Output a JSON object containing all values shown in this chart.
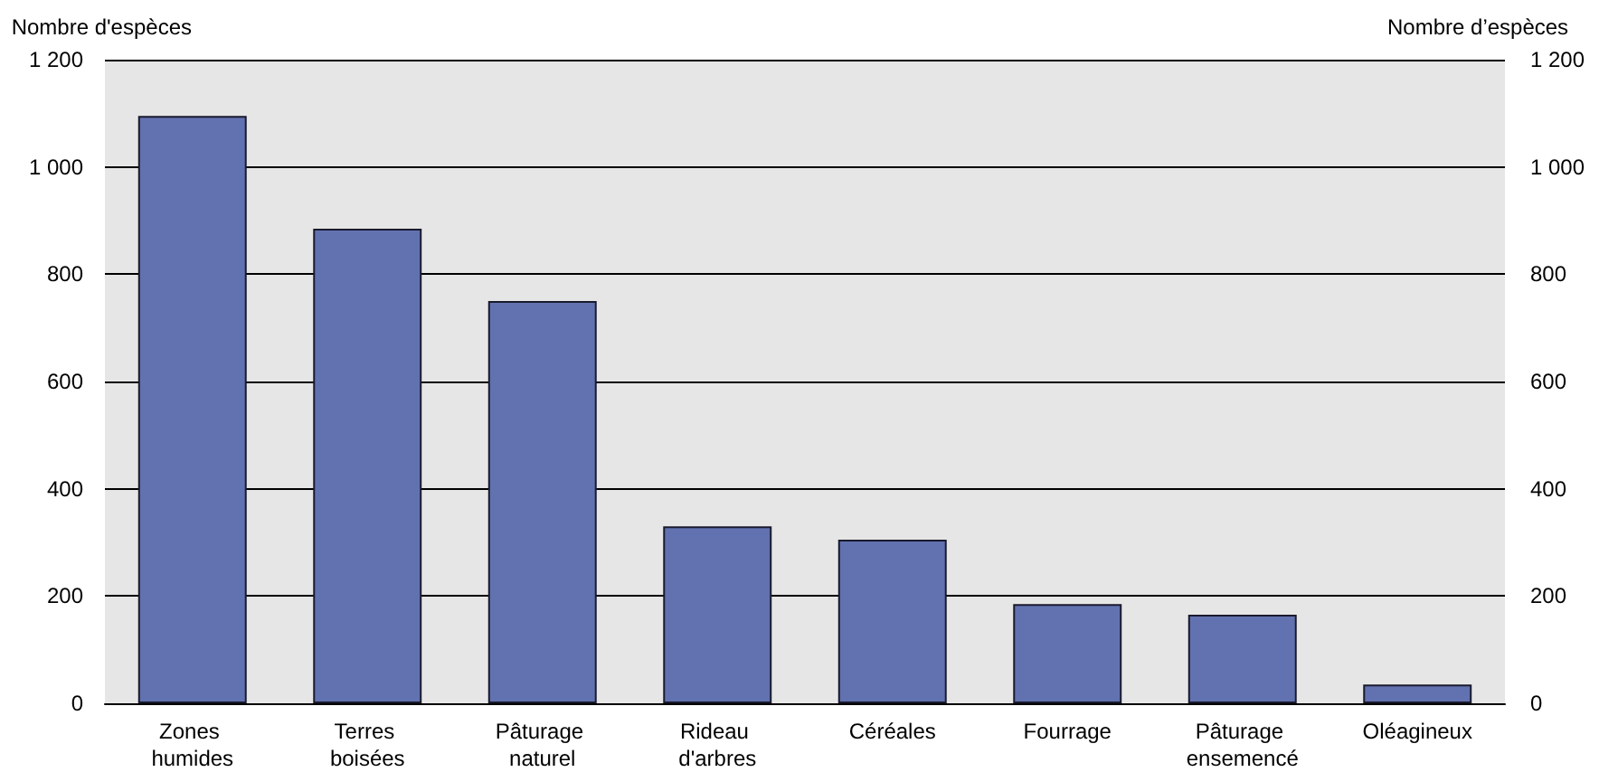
{
  "chart_data": {
    "type": "bar",
    "ylabel": "Nombre d'espèces",
    "y2label": "Nombre d’espèces",
    "categories": [
      "Zones humides",
      "Terres boisées",
      "Pâturage naturel",
      "Rideau d'arbres",
      "Céréales",
      "Fourrage",
      "Pâturage ensemencé",
      "Oléagineux"
    ],
    "values": [
      1095,
      885,
      750,
      330,
      305,
      185,
      165,
      35
    ],
    "color": "#6272b0",
    "ylim": [
      0,
      1200
    ],
    "yticks": [
      0,
      200,
      400,
      600,
      800,
      {
        "value": 1000,
        "label": "1 000"
      },
      {
        "value": 1200,
        "label": "1 200"
      }
    ],
    "y2lim": [
      0,
      1200
    ],
    "y2ticks": [
      0,
      200,
      400,
      600,
      800,
      {
        "value": 1000,
        "label": "1 000"
      },
      {
        "value": 1200,
        "label": "1 200"
      }
    ],
    "grid": "y"
  }
}
